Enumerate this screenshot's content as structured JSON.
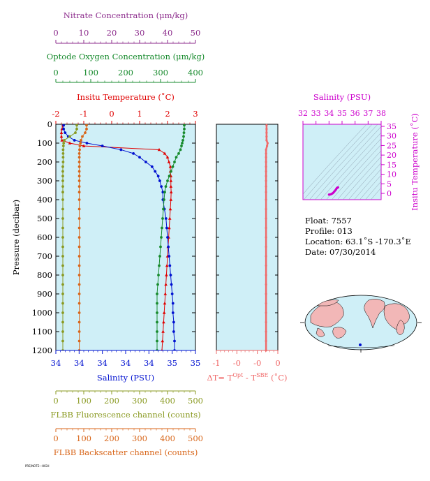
{
  "colors": {
    "nitrate": "#8b2a8b",
    "oxygen": "#168a2c",
    "temperature": "#e00000",
    "salinity": "#0010d0",
    "fluorescence": "#8a9a22",
    "backscatter": "#d8661a",
    "deltaT": "#f06a6a",
    "ts": "#cc00cc",
    "panel_bg": "#cfeff7"
  },
  "axes": {
    "nitrate": {
      "title": "Nitrate Concentration (μm/kg)",
      "ticks": [
        "0",
        "10",
        "20",
        "30",
        "40",
        "50"
      ]
    },
    "oxygen": {
      "title": "Optode Oxygen Concentration (μm/kg)",
      "ticks": [
        "0",
        "100",
        "200",
        "300",
        "400"
      ]
    },
    "temperature": {
      "title": "Insitu Temperature (˚C)",
      "ticks": [
        "-2",
        "-1",
        "0",
        "1",
        "2",
        "3"
      ]
    },
    "salinity": {
      "title": "Salinity (PSU)",
      "ticks": [
        "34",
        "34",
        "34",
        "34",
        "34",
        "35",
        "35"
      ]
    },
    "fluorescence": {
      "title": "FLBB Fluorescence channel (counts)",
      "ticks": [
        "0",
        "100",
        "200",
        "300",
        "400",
        "500"
      ]
    },
    "backscatter": {
      "title": "FLBB Backscatter channel (counts)",
      "ticks": [
        "0",
        "100",
        "200",
        "300",
        "400",
        "500"
      ]
    },
    "pressure": {
      "title": "Pressure (decibar)",
      "ticks": [
        "0",
        "100",
        "200",
        "300",
        "400",
        "500",
        "600",
        "700",
        "800",
        "900",
        "1000",
        "1100",
        "1200"
      ]
    },
    "deltaT": {
      "title_prefix": "ΔT= T",
      "sup1": "Opt",
      "mid": " - T",
      "sup2": "SBE",
      "suffix": " (˚C)",
      "ticks": [
        "-1",
        "-0",
        "-0",
        "0"
      ]
    },
    "ts_salinity": {
      "title": "Salinity (PSU)",
      "ticks": [
        "32",
        "33",
        "34",
        "35",
        "36",
        "37",
        "38"
      ]
    },
    "ts_temperature": {
      "title": "Insitu Temperature (˚C)",
      "ticks": [
        "35",
        "30",
        "25",
        "20",
        "15",
        "10",
        "5",
        "0"
      ]
    }
  },
  "info": {
    "float": "Float:  7557",
    "profile": "Profile:  013",
    "location": "Location:  63.1˚S  -170.3˚E",
    "date": "Date:  07/30/2014"
  },
  "stamp": "PRE/NOTE—HIGH",
  "chart_data": {
    "type": "line",
    "pressure": [
      5,
      25,
      45,
      65,
      85,
      100,
      115,
      135,
      155,
      175,
      200,
      225,
      250,
      275,
      300,
      330,
      360,
      400,
      450,
      500,
      550,
      600,
      650,
      700,
      750,
      800,
      850,
      900,
      950,
      1000,
      1050,
      1100,
      1150,
      1200
    ],
    "series": [
      {
        "name": "temperature",
        "x": [
          -1.75,
          -1.78,
          -1.8,
          -1.8,
          -1.78,
          -1.5,
          -1.0,
          1.7,
          1.9,
          2.0,
          2.05,
          2.1,
          2.1,
          2.12,
          2.12,
          2.12,
          2.13,
          2.12,
          2.1,
          2.08,
          2.06,
          2.04,
          2.02,
          2.0,
          1.98,
          1.96,
          1.94,
          1.92,
          1.9,
          1.88,
          1.86,
          1.84,
          1.82,
          1.8
        ]
      },
      {
        "name": "salinity",
        "x": [
          34.05,
          34.05,
          34.06,
          34.08,
          34.12,
          34.2,
          34.3,
          34.42,
          34.5,
          34.54,
          34.58,
          34.62,
          34.64,
          34.66,
          34.67,
          34.68,
          34.69,
          34.69,
          34.7,
          34.71,
          34.715,
          34.72,
          34.725,
          34.73,
          34.735,
          34.74,
          34.745,
          34.75,
          34.755,
          34.755,
          34.76,
          34.76,
          34.765,
          34.765
        ]
      },
      {
        "name": "oxygen",
        "x": [
          368,
          368,
          367,
          366,
          364,
          362,
          360,
          357,
          352,
          345,
          340,
          335,
          330,
          325,
          320,
          315,
          312,
          310,
          308,
          306,
          304,
          302,
          300,
          298,
          296,
          294,
          292,
          290,
          290,
          290,
          290,
          290,
          290,
          290
        ]
      },
      {
        "name": "fluorescence",
        "x": [
          75,
          75,
          70,
          50,
          30,
          28,
          27,
          26,
          26,
          26,
          26,
          25,
          25,
          25,
          25,
          25,
          25,
          25,
          25,
          25,
          25,
          25,
          25,
          25,
          25,
          25,
          25,
          25,
          25,
          25,
          25,
          25,
          25,
          25
        ]
      },
      {
        "name": "backscatter",
        "x": [
          110,
          110,
          105,
          95,
          90,
          88,
          86,
          85,
          84,
          84,
          84,
          84,
          84,
          84,
          84,
          84,
          84,
          84,
          84,
          84,
          84,
          84,
          84,
          84,
          84,
          84,
          84,
          84,
          84,
          84,
          84,
          84,
          84,
          84
        ]
      },
      {
        "name": "deltaT",
        "x": [
          -0.02,
          -0.02,
          -0.02,
          -0.02,
          -0.02,
          0.0,
          -0.01,
          -0.03,
          -0.03,
          -0.03,
          -0.03,
          -0.03,
          -0.03,
          -0.03,
          -0.03,
          -0.03,
          -0.03,
          -0.03,
          -0.03,
          -0.03,
          -0.03,
          -0.03,
          -0.03,
          -0.03,
          -0.03,
          -0.03,
          -0.03,
          -0.03,
          -0.03,
          -0.03,
          -0.03,
          -0.03,
          -0.03,
          -0.03
        ]
      }
    ],
    "ts_points": {
      "salinity": [
        34.0,
        34.1,
        34.2,
        34.3,
        34.4,
        34.5,
        34.55,
        34.6,
        34.65,
        34.7
      ],
      "temperature": [
        -1.8,
        -1.7,
        -1.4,
        -1.0,
        -0.2,
        0.6,
        1.2,
        1.7,
        2.0,
        2.1
      ]
    }
  }
}
